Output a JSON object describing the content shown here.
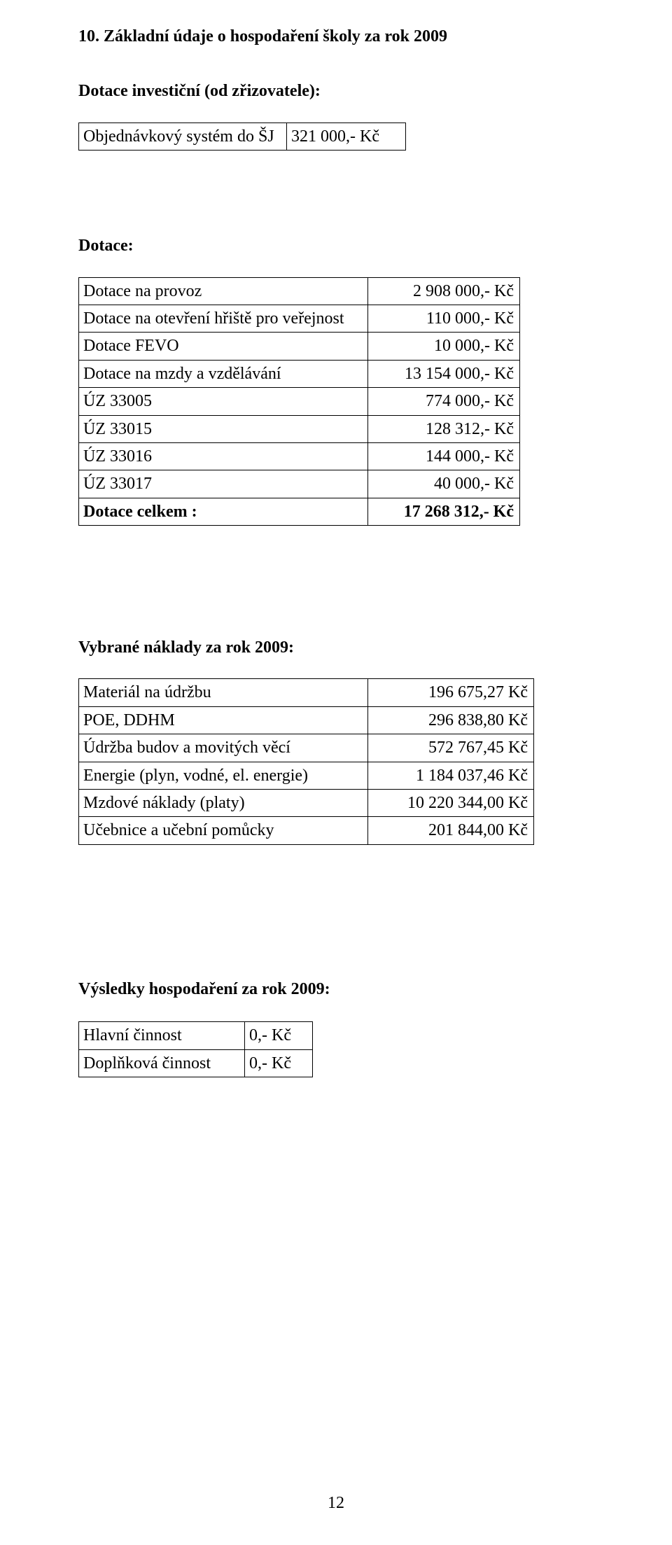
{
  "title": "10. Základní údaje o hospodaření školy za rok 2009",
  "section1": {
    "heading": "Dotace investiční (od zřizovatele):",
    "rows": [
      {
        "label": "Objednávkový systém do ŠJ",
        "value": "321 000,- Kč"
      }
    ]
  },
  "section2": {
    "heading": "Dotace:",
    "rows": [
      {
        "label": "Dotace na provoz",
        "value": "2  908 000,- Kč",
        "bold": false
      },
      {
        "label": "Dotace na otevření hřiště pro veřejnost",
        "value": "110 000,- Kč",
        "bold": false
      },
      {
        "label": "Dotace FEVO",
        "value": "10 000,- Kč",
        "bold": false
      },
      {
        "label": "Dotace na mzdy a vzdělávání",
        "value": "13 154 000,- Kč",
        "bold": false
      },
      {
        "label": "ÚZ 33005",
        "value": "774 000,- Kč",
        "bold": false
      },
      {
        "label": "ÚZ 33015",
        "value": "128 312,- Kč",
        "bold": false
      },
      {
        "label": "ÚZ 33016",
        "value": "144 000,- Kč",
        "bold": false
      },
      {
        "label": "ÚZ 33017",
        "value": "40 000,- Kč",
        "bold": false
      },
      {
        "label": "Dotace celkem :",
        "value": "17 268 312,- Kč",
        "bold": true
      }
    ]
  },
  "section3": {
    "heading": "Vybrané náklady za rok 2009:",
    "rows": [
      {
        "label": "Materiál na údržbu",
        "value": "196 675,27 Kč"
      },
      {
        "label": "POE, DDHM",
        "value": "296 838,80 Kč"
      },
      {
        "label": "Údržba budov a movitých věcí",
        "value": "572 767,45 Kč"
      },
      {
        "label": "Energie (plyn, vodné, el. energie)",
        "value": "1 184 037,46 Kč"
      },
      {
        "label": "Mzdové náklady (platy)",
        "value": "10 220 344,00 Kč"
      },
      {
        "label": "Učebnice a učební pomůcky",
        "value": "201 844,00 Kč"
      }
    ]
  },
  "section4": {
    "heading": "Výsledky hospodaření za rok 2009:",
    "rows": [
      {
        "label": "Hlavní činnost",
        "value": "0,- Kč"
      },
      {
        "label": "Doplňková činnost",
        "value": "0,- Kč"
      }
    ]
  },
  "pageNumber": "12"
}
